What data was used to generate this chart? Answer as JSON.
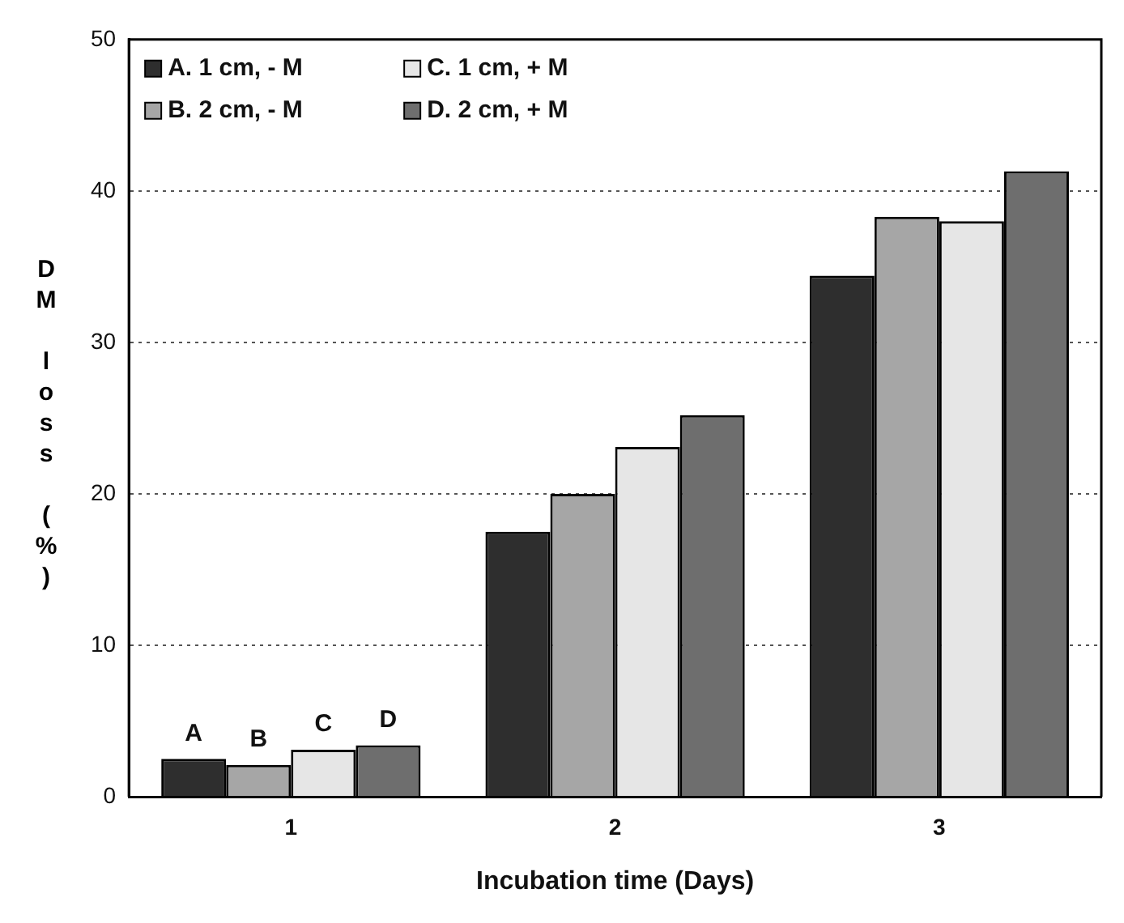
{
  "chart_data": {
    "type": "bar",
    "xlabel": "Incubation time (Days)",
    "ylabel": "DM loss (%)",
    "categories": [
      "1",
      "2",
      "3"
    ],
    "series": [
      {
        "name": "A. 1 cm, - M",
        "color": "#2e2e2e",
        "values": [
          2.5,
          17.5,
          34.4
        ]
      },
      {
        "name": "B. 2 cm, - M",
        "color": "#a6a6a6",
        "values": [
          2.1,
          20.0,
          38.3
        ]
      },
      {
        "name": "C. 1 cm, + M",
        "color": "#e6e6e6",
        "values": [
          3.1,
          23.1,
          38.0
        ]
      },
      {
        "name": "D. 2 cm, + M",
        "color": "#6e6e6e",
        "values": [
          3.4,
          25.2,
          41.3
        ]
      }
    ],
    "ylim": [
      0,
      50
    ],
    "yticks": [
      0,
      10,
      20,
      30,
      40,
      50
    ],
    "grid": "y",
    "legend": "top left",
    "annotations": [
      "A",
      "B",
      "C",
      "D"
    ]
  }
}
